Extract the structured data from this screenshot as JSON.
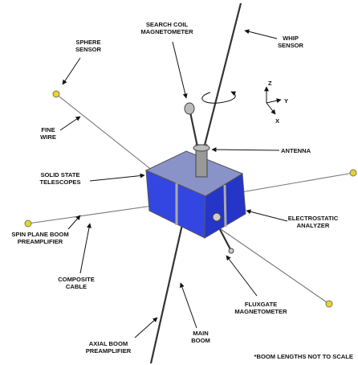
{
  "labels": [
    {
      "lines": [
        "SPHERE",
        "SENSOR"
      ]
    },
    {
      "lines": [
        "SEARCH COIL",
        "MAGNETOMETER"
      ]
    },
    {
      "lines": [
        "WHIP",
        "SENSOR"
      ]
    },
    {
      "lines": [
        "FINE",
        "WIRE"
      ]
    },
    {
      "lines": [
        "ANTENNA"
      ]
    },
    {
      "lines": [
        "SOLID STATE",
        "TELESCOPES"
      ]
    },
    {
      "lines": [
        "ELECTROSTATIC",
        "ANALYZER"
      ]
    },
    {
      "lines": [
        "SPIN PLANE BOOM",
        "PREAMPLIFIER"
      ]
    },
    {
      "lines": [
        "COMPOSITE",
        "CABLE"
      ]
    },
    {
      "lines": [
        "FLUXGATE",
        "MAGNETOMETER"
      ]
    },
    {
      "lines": [
        "MAIN",
        "BOOM"
      ]
    },
    {
      "lines": [
        "AXIAL BOOM",
        "PREAMPLIFIER"
      ]
    },
    {
      "lines": [
        "*BOOM LENGTHS NOT TO SCALE"
      ]
    }
  ],
  "axes": {
    "z": "Z",
    "y": "Y",
    "x": "X"
  }
}
